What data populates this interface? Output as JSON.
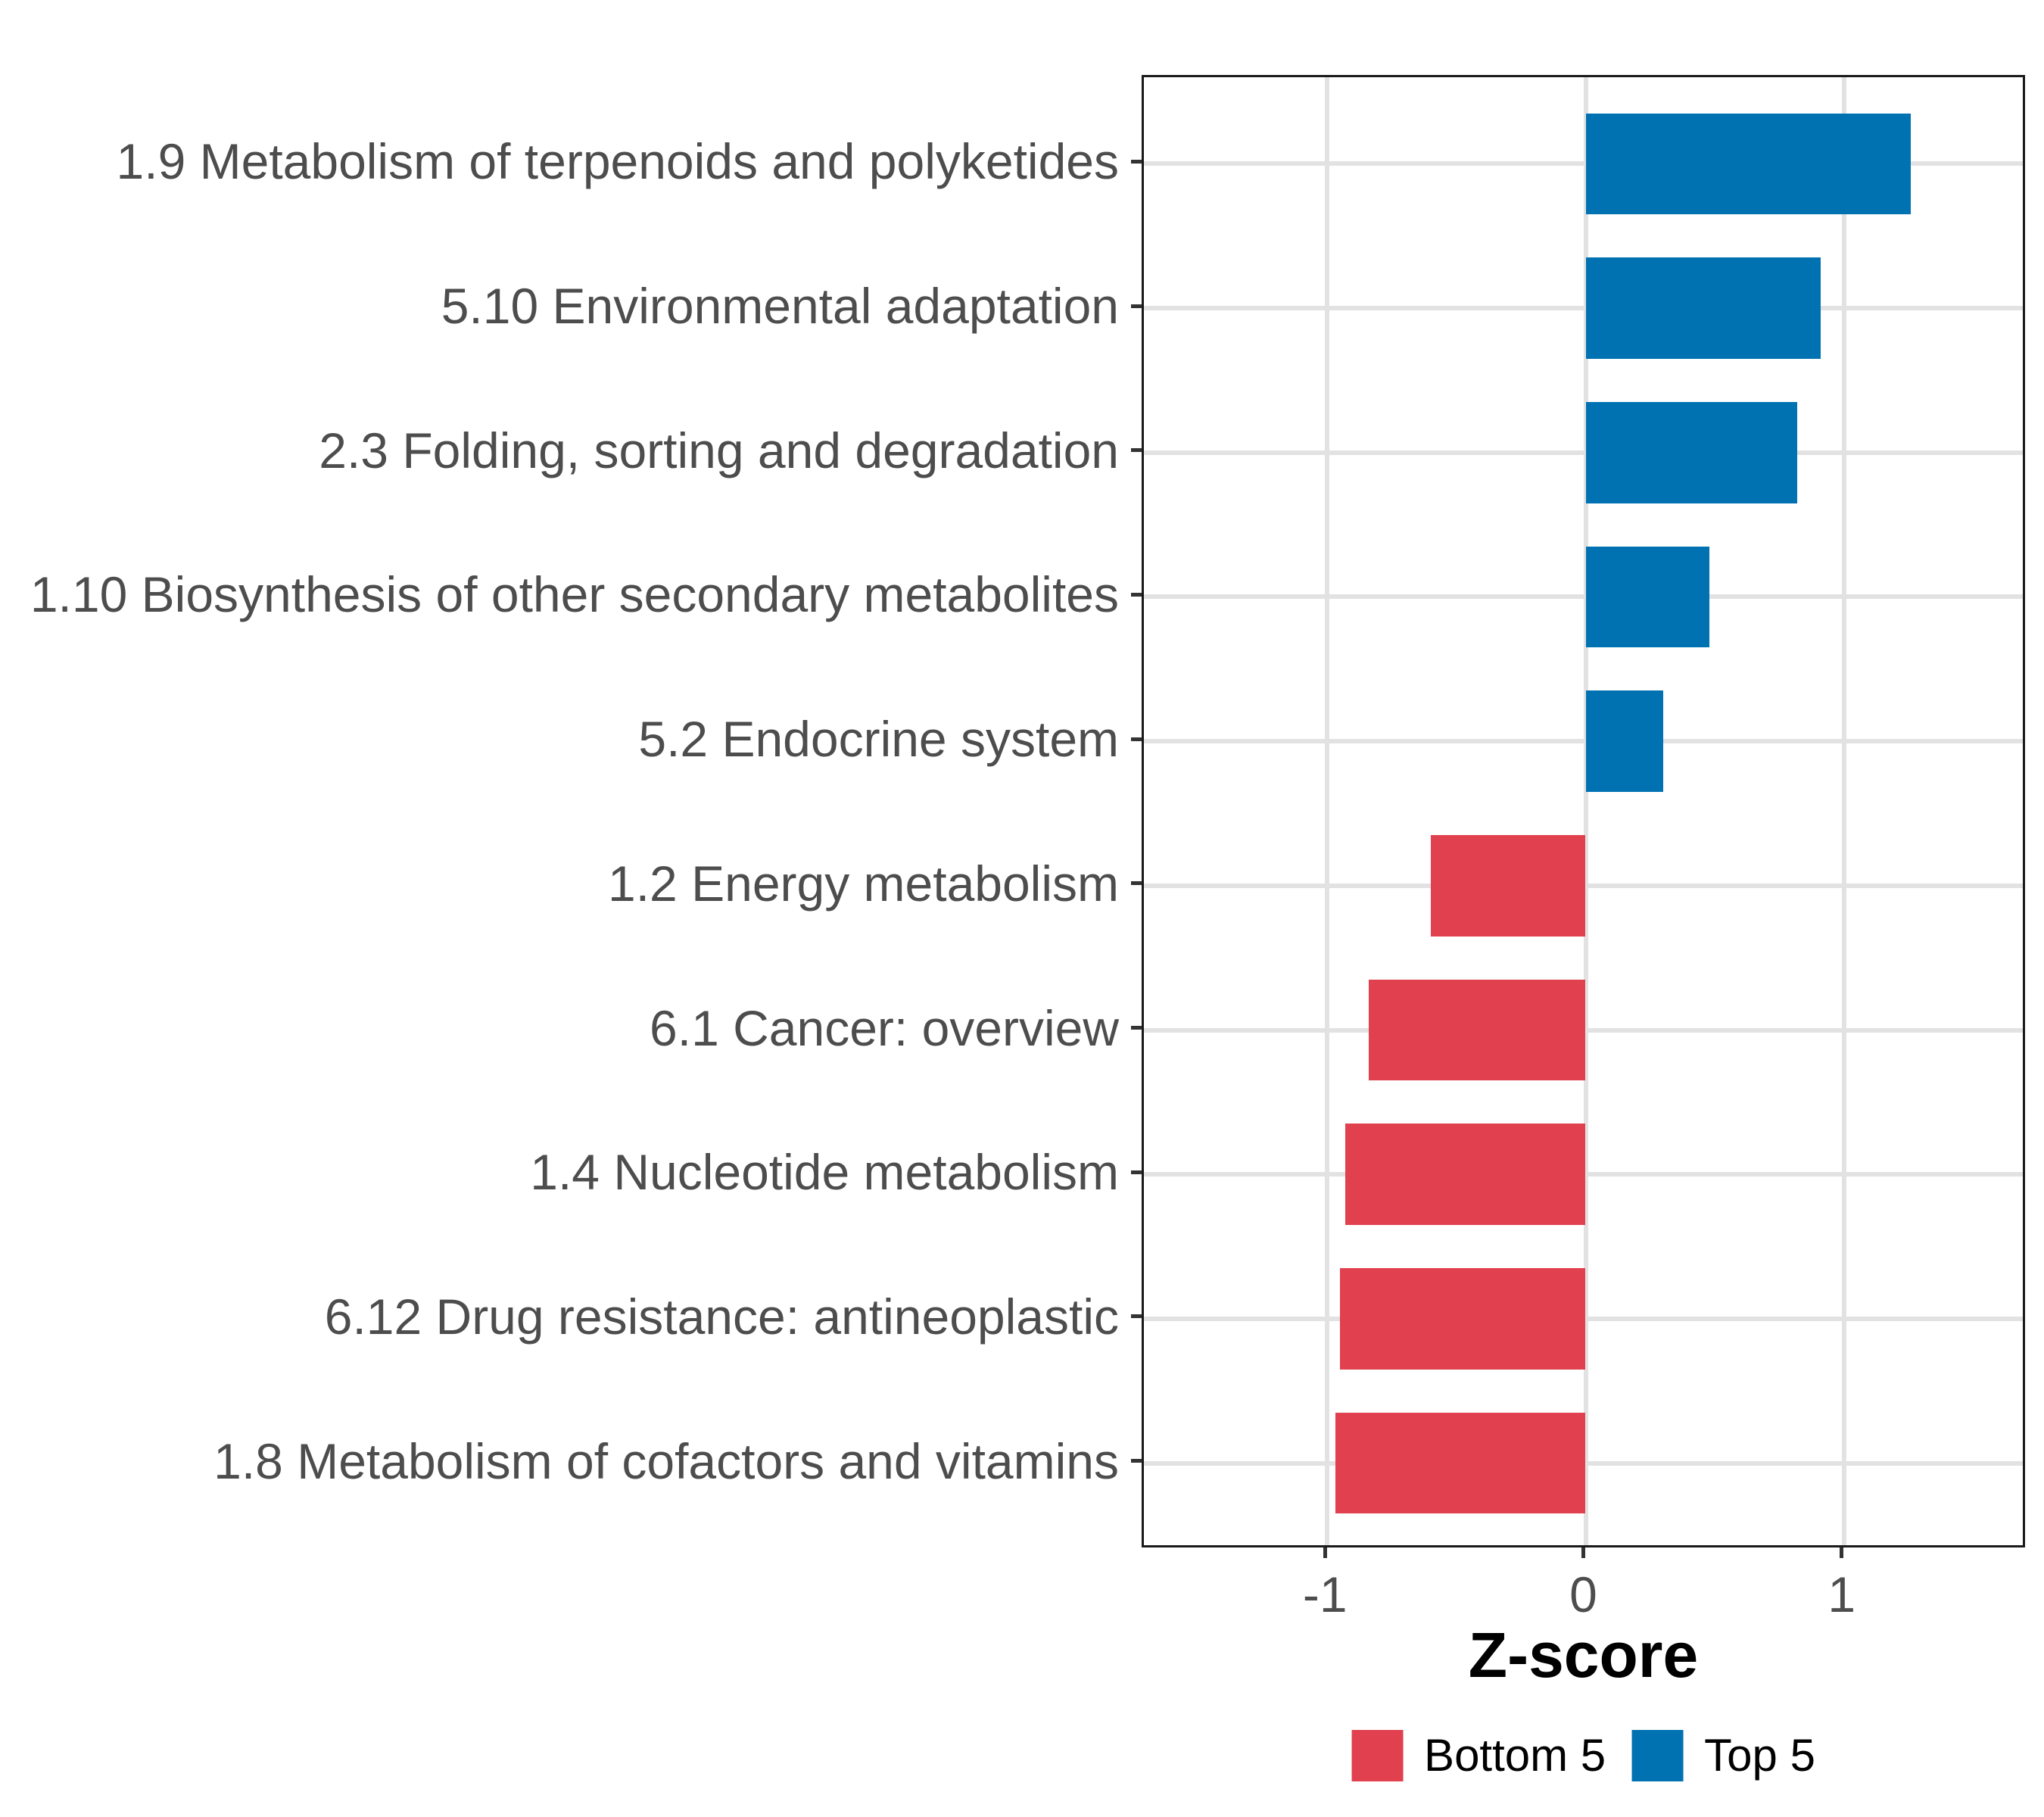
{
  "chart_data": {
    "type": "bar",
    "orientation": "horizontal",
    "xlabel": "Z-score",
    "categories": [
      "1.9 Metabolism of terpenoids and polyketides",
      "5.10 Environmental adaptation",
      "2.3 Folding, sorting and degradation",
      "1.10 Biosynthesis of other secondary metabolites",
      "5.2 Endocrine system",
      "1.2 Energy metabolism",
      "6.1 Cancer: overview",
      "1.4 Nucleotide metabolism",
      "6.12 Drug resistance: antineoplastic",
      "1.8 Metabolism of cofactors and vitamins"
    ],
    "values": [
      1.26,
      0.91,
      0.82,
      0.48,
      0.3,
      -0.6,
      -0.84,
      -0.93,
      -0.95,
      -0.97
    ],
    "groups": [
      "Top 5",
      "Top 5",
      "Top 5",
      "Top 5",
      "Top 5",
      "Bottom 5",
      "Bottom 5",
      "Bottom 5",
      "Bottom 5",
      "Bottom 5"
    ],
    "xlim": [
      -1.71,
      1.71
    ],
    "x_ticks": [
      -1,
      0,
      1
    ],
    "x_tick_labels": [
      "-1",
      "0",
      "1"
    ],
    "grid": true,
    "legend": {
      "position": "bottom",
      "entries": [
        {
          "label": "Bottom 5",
          "color": "#e1404e"
        },
        {
          "label": "Top 5",
          "color": "#0072b2"
        }
      ]
    },
    "colors": {
      "top5_bar": "#0072b2",
      "bottom5_bar": "#e1404e",
      "grid": "#e2e2e2",
      "panel_border": "#1a1a1a",
      "tick": "#333333",
      "axis_text": "#4d4d4d",
      "title_text": "#000000",
      "background": "#ffffff"
    }
  }
}
